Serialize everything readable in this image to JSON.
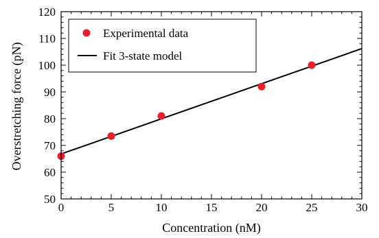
{
  "chart_data": {
    "type": "scatter",
    "xlabel": "Concentration (nM)",
    "ylabel": "Overstretching force (pN)",
    "xlim": [
      0,
      30
    ],
    "ylim": [
      50,
      120
    ],
    "xticks": [
      0,
      5,
      10,
      15,
      20,
      25,
      30
    ],
    "yticks": [
      50,
      60,
      70,
      80,
      90,
      100,
      110,
      120
    ],
    "grid": false,
    "legend_position": "top-left",
    "series": [
      {
        "name": "Experimental data",
        "kind": "points",
        "color": "#e8202a",
        "x": [
          0,
          5,
          10,
          20,
          25
        ],
        "y": [
          66,
          73.5,
          81,
          92,
          100
        ]
      },
      {
        "name": "Fit 3-state model",
        "kind": "line",
        "color": "#000000",
        "x": [
          0,
          30
        ],
        "y": [
          66.8,
          106.2
        ]
      }
    ]
  }
}
